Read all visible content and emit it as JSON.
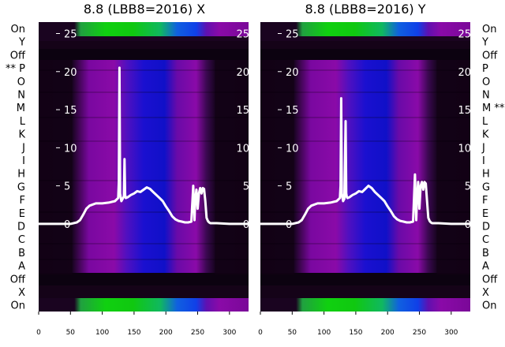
{
  "colors": {
    "background": "#ffffff",
    "waterfall_dark": "#1a0420",
    "waterfall_purple": "#8a0aa8",
    "waterfall_blue": "#1010d0",
    "waterfall_green": "#10c810",
    "trace": "#ffffff"
  },
  "row_labels_left": [
    "On",
    "Y",
    "Off",
    "** P",
    "O",
    "N",
    "M",
    "L",
    "K",
    "J",
    "I",
    "H",
    "G",
    "F",
    "E",
    "D",
    "C",
    "B",
    "A",
    "Off",
    "X",
    "On"
  ],
  "row_labels_right": [
    "On",
    "Y",
    "Off",
    "P",
    "O",
    "N",
    "M **",
    "L",
    "K",
    "J",
    "I",
    "H",
    "G",
    "F",
    "E",
    "D",
    "C",
    "B",
    "A",
    "Off",
    "X",
    "On"
  ],
  "chart_data": [
    {
      "type": "line",
      "title": "8.8 (LBB8=2016) X",
      "xlim": [
        0,
        330
      ],
      "ylim": [
        -11.5,
        26.5
      ],
      "xticks": [
        "0",
        "50",
        "100",
        "150",
        "200",
        "250",
        "300"
      ],
      "yticks": [
        "0",
        "5",
        "10",
        "15",
        "20",
        "25"
      ],
      "grid": false,
      "series": [
        {
          "x": [
            0,
            50,
            60,
            65,
            70,
            75,
            80,
            90,
            100,
            110,
            120,
            125,
            126,
            127,
            128,
            130,
            132,
            134,
            135,
            136,
            137,
            140,
            145,
            150,
            155,
            160,
            165,
            170,
            175,
            180,
            185,
            190,
            195,
            200,
            205,
            210,
            215,
            220,
            225,
            230,
            235,
            240,
            243,
            245,
            246,
            248,
            250,
            252,
            254,
            256,
            258,
            260,
            262,
            264,
            266,
            268,
            270,
            280,
            300,
            330
          ],
          "y": [
            0,
            0,
            0.2,
            0.5,
            1.2,
            2.0,
            2.4,
            2.7,
            2.7,
            2.8,
            3.0,
            3.4,
            5.5,
            20.5,
            4.0,
            3.0,
            3.3,
            3.6,
            8.5,
            3.8,
            3.4,
            3.5,
            3.8,
            4.0,
            4.3,
            4.2,
            4.5,
            4.8,
            4.6,
            4.2,
            3.8,
            3.4,
            3.0,
            2.3,
            1.7,
            1.0,
            0.6,
            0.4,
            0.3,
            0.2,
            0.2,
            0.3,
            5.0,
            0.5,
            3.0,
            4.5,
            2.0,
            4.0,
            4.7,
            4.0,
            4.7,
            4.6,
            3.0,
            0.8,
            0.4,
            0.2,
            0.1,
            0.1,
            0.0,
            0.0
          ]
        }
      ]
    },
    {
      "type": "line",
      "title": "8.8 (LBB8=2016) Y",
      "xlim": [
        0,
        330
      ],
      "ylim": [
        -11.5,
        26.5
      ],
      "xticks": [
        "0",
        "50",
        "100",
        "150",
        "200",
        "250",
        "300"
      ],
      "yticks": [
        "0",
        "5",
        "10",
        "15",
        "20",
        "25"
      ],
      "grid": false,
      "series": [
        {
          "x": [
            0,
            50,
            60,
            65,
            70,
            75,
            80,
            90,
            100,
            110,
            120,
            125,
            126,
            127,
            128,
            130,
            132,
            134,
            135,
            136,
            137,
            140,
            145,
            150,
            155,
            160,
            165,
            170,
            175,
            180,
            185,
            190,
            195,
            200,
            205,
            210,
            215,
            220,
            225,
            230,
            235,
            240,
            243,
            245,
            246,
            248,
            250,
            252,
            254,
            256,
            258,
            260,
            262,
            264,
            266,
            268,
            270,
            280,
            300,
            330
          ],
          "y": [
            0,
            0,
            0.2,
            0.5,
            1.2,
            2.0,
            2.4,
            2.7,
            2.7,
            2.8,
            3.0,
            3.4,
            5.0,
            16.5,
            4.0,
            3.0,
            3.3,
            13.5,
            4.0,
            3.5,
            3.4,
            3.5,
            3.8,
            4.0,
            4.3,
            4.2,
            4.6,
            5.0,
            4.7,
            4.2,
            3.8,
            3.4,
            3.0,
            2.3,
            1.7,
            1.0,
            0.6,
            0.4,
            0.3,
            0.2,
            0.2,
            0.3,
            6.5,
            0.5,
            3.0,
            5.5,
            2.0,
            5.0,
            5.5,
            4.5,
            5.5,
            5.3,
            3.0,
            0.8,
            0.4,
            0.2,
            0.1,
            0.1,
            0.0,
            0.0
          ]
        }
      ]
    }
  ]
}
